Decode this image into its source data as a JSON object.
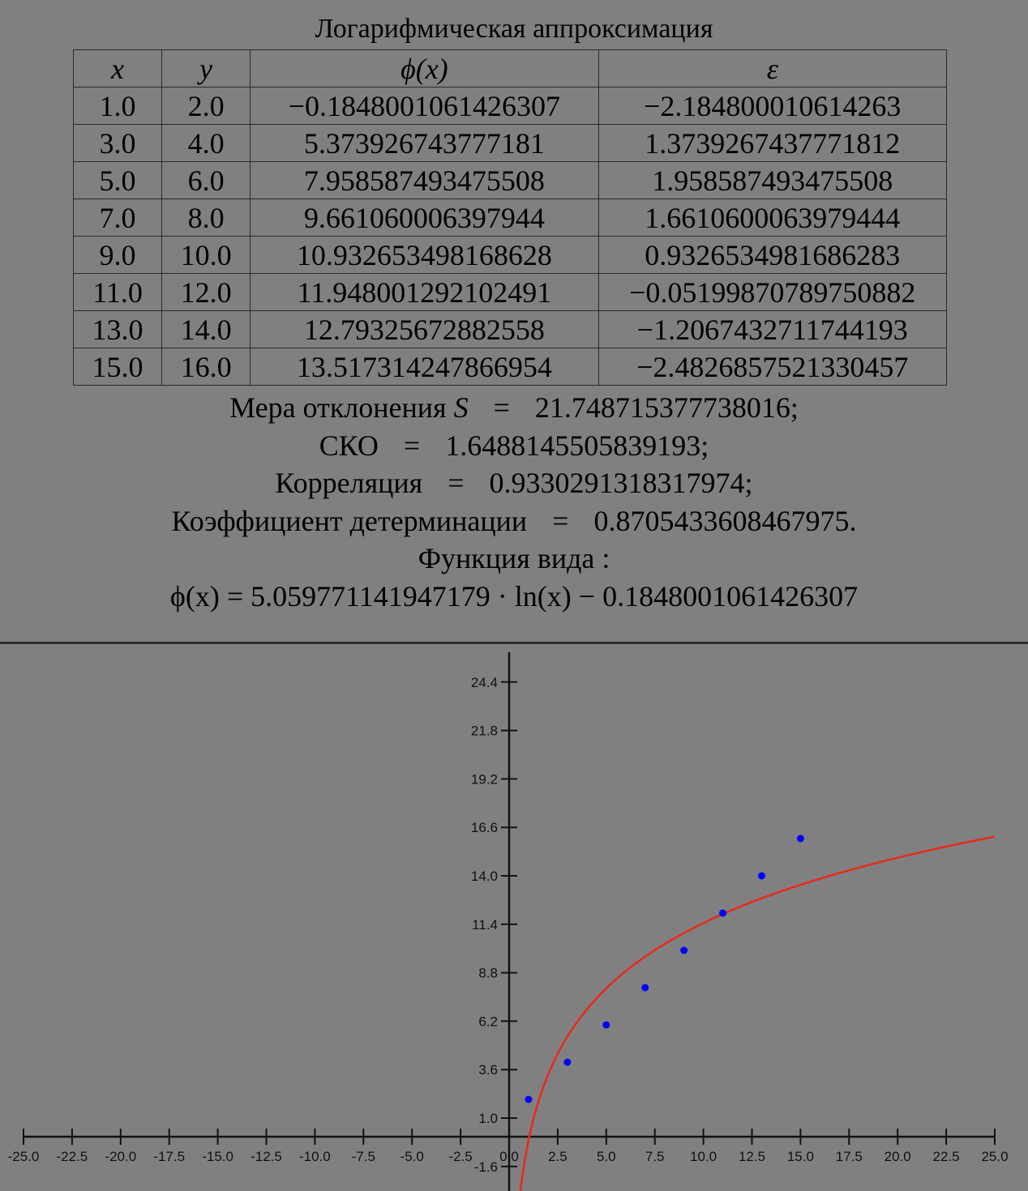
{
  "report": {
    "title": "Логарифмическая аппроксимация",
    "headers": [
      "x",
      "y",
      "ϕ(x)",
      "ε"
    ],
    "rows": [
      [
        "1.0",
        "2.0",
        "−0.1848001061426307",
        "−2.184800010614263"
      ],
      [
        "3.0",
        "4.0",
        "5.373926743777181",
        "1.3739267437771812"
      ],
      [
        "5.0",
        "6.0",
        "7.958587493475508",
        "1.958587493475508"
      ],
      [
        "7.0",
        "8.0",
        "9.661060006397944",
        "1.6610600063979444"
      ],
      [
        "9.0",
        "10.0",
        "10.932653498168628",
        "0.9326534981686283"
      ],
      [
        "11.0",
        "12.0",
        "11.948001292102491",
        "−0.05199870789750882"
      ],
      [
        "13.0",
        "14.0",
        "12.79325672882558",
        "−1.2067432711744193"
      ],
      [
        "15.0",
        "16.0",
        "13.517314247866954",
        "−2.4826857521330457"
      ]
    ],
    "deviation_label": "Мера отклонения",
    "deviation_symbol": "S",
    "deviation_value": "21.748715377738016;",
    "sko_label": "СКО",
    "sko_value": "1.6488145505839193;",
    "correlation_label": "Корреляция",
    "correlation_value": "0.9330291318317974;",
    "determination_label": "Коэффициент детерминации",
    "determination_value": "0.8705433608467975.",
    "function_heading": "Функция вида :",
    "function_formula": "ϕ(x) = 5.059771141947179 · ln(x) − 0.1848001061426307",
    "eq_sign": "="
  },
  "chart_data": {
    "type": "scatter",
    "title": "",
    "xlabel": "",
    "ylabel": "",
    "xlim": [
      -25.0,
      25.0
    ],
    "ylim": [
      -1.6,
      24.4
    ],
    "x_ticks": [
      "-25.0",
      "-22.5",
      "-20.0",
      "-17.5",
      "-15.0",
      "-12.5",
      "-10.0",
      "-7.5",
      "-5.0",
      "-2.5",
      "0.0",
      "2.5",
      "5.0",
      "7.5",
      "10.0",
      "12.5",
      "15.0",
      "17.5",
      "20.0",
      "22.5",
      "25.0"
    ],
    "y_ticks": [
      "-1.6",
      "1.0",
      "3.6",
      "6.2",
      "8.8",
      "11.4",
      "14.0",
      "16.6",
      "19.2",
      "21.8",
      "24.4"
    ],
    "points": {
      "x": [
        1.0,
        3.0,
        5.0,
        7.0,
        9.0,
        11.0,
        13.0,
        15.0
      ],
      "y": [
        2.0,
        4.0,
        6.0,
        8.0,
        10.0,
        12.0,
        14.0,
        16.0
      ],
      "color": "#0000ff"
    },
    "curve": {
      "a": 5.059771141947179,
      "b": -0.1848001061426307,
      "color": "#e8291c"
    },
    "grid": false,
    "axis_color": "#111111"
  }
}
